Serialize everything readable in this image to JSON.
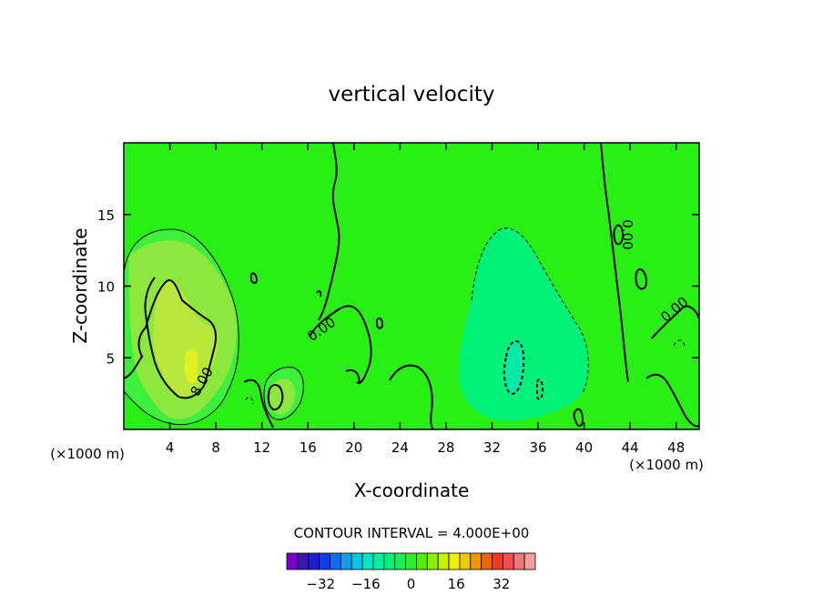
{
  "chart_data": {
    "type": "contour",
    "title": "vertical velocity",
    "xlabel": "X-coordinate",
    "ylabel": "Z-coordinate",
    "x_unit_label": "(×1000 m)",
    "xlim": [
      0,
      50
    ],
    "ylim": [
      0,
      20
    ],
    "x_ticks": [
      4,
      8,
      12,
      16,
      20,
      24,
      28,
      32,
      36,
      40,
      44,
      48
    ],
    "y_ticks": [
      5,
      10,
      15
    ],
    "contour_interval_label": "CONTOUR INTERVAL = 4.000E+00",
    "contour_labels": [
      "0.00",
      "8.00"
    ],
    "colorbar": {
      "tick_labels": [
        "−32",
        "−16",
        "0",
        "16",
        "32"
      ],
      "tick_values": [
        -32,
        -16,
        0,
        16,
        32
      ],
      "range": [
        -44,
        44
      ],
      "interval": 4,
      "colors": [
        "#7a00c8",
        "#3c14b4",
        "#1e1ed2",
        "#0a3cf0",
        "#0a6ef0",
        "#0aa0f0",
        "#00c8e6",
        "#00e6c8",
        "#00f0a0",
        "#00f078",
        "#14f050",
        "#28f028",
        "#50f000",
        "#8cf000",
        "#c8f000",
        "#f0f000",
        "#f0c800",
        "#f09600",
        "#f06400",
        "#f03c1e",
        "#f05050",
        "#f07878",
        "#f0a0a0"
      ]
    },
    "field_colors": {
      "background": "#28f014",
      "band_0_4": "#3cf03c",
      "band_4_8": "#8ce83c",
      "band_8_12": "#b8e83c",
      "band_12_16": "#e0f020",
      "band_m4_0": "#00f078",
      "band_m8_m4": "#00eaa8",
      "band_m12_m8": "#00e6c8"
    },
    "features": [
      {
        "type": "updraft",
        "x_center": 6,
        "z_center": 6,
        "peak": 14
      },
      {
        "type": "updraft",
        "x_center": 13.5,
        "z_center": 2.5,
        "peak": 6
      },
      {
        "type": "downdraft",
        "x_center": 33,
        "z_center": 7,
        "peak": -10
      }
    ]
  }
}
